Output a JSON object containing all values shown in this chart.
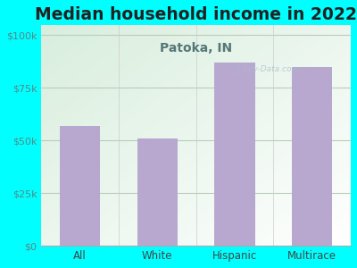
{
  "title": "Median household income in 2022",
  "subtitle": "Patoka, IN",
  "categories": [
    "All",
    "White",
    "Hispanic",
    "Multirace"
  ],
  "values": [
    57000,
    51000,
    87000,
    85000
  ],
  "bar_color": "#b8a8d0",
  "title_fontsize": 13.5,
  "subtitle_fontsize": 10,
  "subtitle_color": "#557777",
  "title_color": "#222222",
  "bg_color": "#00ffff",
  "plot_grad_top_left": "#d8eedd",
  "plot_grad_white": "#ffffff",
  "yticks": [
    0,
    25000,
    50000,
    75000,
    100000
  ],
  "ytick_labels": [
    "$0",
    "$25k",
    "$50k",
    "$75k",
    "$100k"
  ],
  "ylim": [
    0,
    105000
  ],
  "watermark": "Ⓜ City-Data.com",
  "grid_color": "#bbccbb",
  "tick_color": "#558888",
  "xlabel_color": "#444444"
}
